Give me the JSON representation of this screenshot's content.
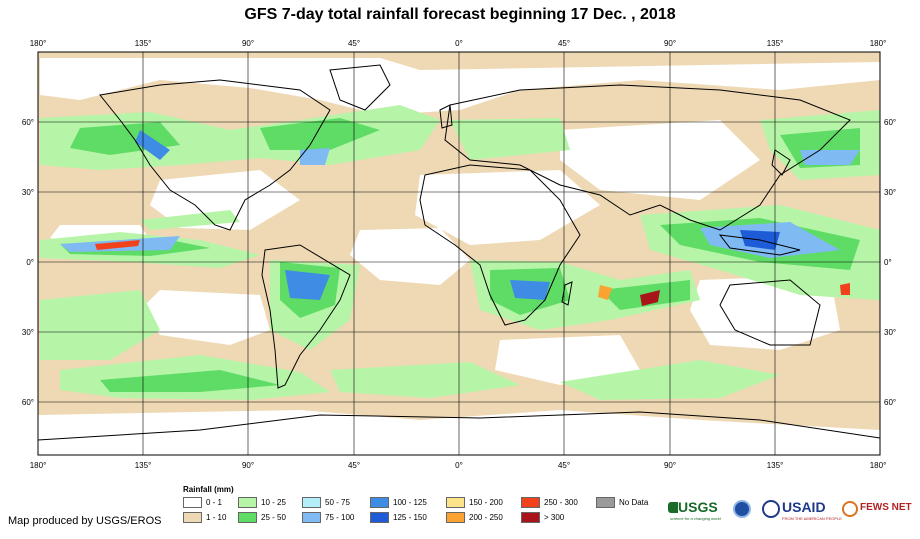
{
  "title": "GFS 7-day total rainfall forecast beginning 17 Dec. , 2018",
  "lon_ticks": [
    "180°",
    "135°",
    "90°",
    "45°",
    "0°",
    "45°",
    "90°",
    "135°",
    "180°"
  ],
  "lat_ticks": [
    "60°",
    "30°",
    "0°",
    "30°",
    "60°"
  ],
  "legend": {
    "title": "Rainfall (mm)",
    "items": [
      {
        "label": "0 - 1",
        "color": "#ffffff"
      },
      {
        "label": "1 - 10",
        "color": "#eed9b4"
      },
      {
        "label": "10 - 25",
        "color": "#b6f5a8"
      },
      {
        "label": "25 - 50",
        "color": "#5fdc65"
      },
      {
        "label": "50 - 75",
        "color": "#b4eef8"
      },
      {
        "label": "75 - 100",
        "color": "#7fbaf2"
      },
      {
        "label": "100 - 125",
        "color": "#3f8ce4"
      },
      {
        "label": "125 - 150",
        "color": "#1e5bd6"
      },
      {
        "label": "150 - 200",
        "color": "#fce38a"
      },
      {
        "label": "200 - 250",
        "color": "#fba232"
      },
      {
        "label": "250 - 300",
        "color": "#f1421b"
      },
      {
        "label": "> 300",
        "color": "#a8141a"
      },
      {
        "label": "No Data",
        "color": "#9a9a9a"
      }
    ]
  },
  "credit": "Map produced by USGS/EROS",
  "logos": {
    "usgs": "USGS",
    "usgs_tagline": "science for a changing world",
    "usaid": "USAID",
    "usaid_tagline": "FROM THE AMERICAN PEOPLE",
    "fewsnet": "FEWS NET"
  }
}
